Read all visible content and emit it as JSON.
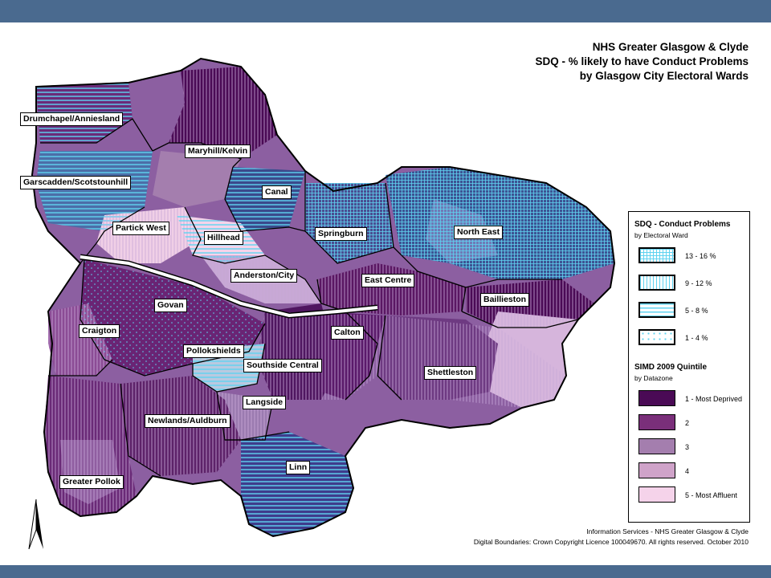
{
  "title": {
    "line1": "NHS Greater Glasgow & Clyde",
    "line2": "SDQ - % likely to have Conduct Problems",
    "line3": "by Glasgow City Electoral Wards"
  },
  "wards": [
    {
      "id": "drumchapel-anniesland",
      "label": "Drumchapel/Anniesland"
    },
    {
      "id": "maryhill-kelvin",
      "label": "Maryhill/Kelvin"
    },
    {
      "id": "garscadden-scotstounhill",
      "label": "Garscadden/Scotstounhill"
    },
    {
      "id": "canal",
      "label": "Canal"
    },
    {
      "id": "springburn",
      "label": "Springburn"
    },
    {
      "id": "north-east",
      "label": "North East"
    },
    {
      "id": "partick-west",
      "label": "Partick West"
    },
    {
      "id": "hillhead",
      "label": "Hillhead"
    },
    {
      "id": "anderston-city",
      "label": "Anderston/City"
    },
    {
      "id": "east-centre",
      "label": "East Centre"
    },
    {
      "id": "govan",
      "label": "Govan"
    },
    {
      "id": "baillieston",
      "label": "Baillieston"
    },
    {
      "id": "craigton",
      "label": "Craigton"
    },
    {
      "id": "calton",
      "label": "Calton"
    },
    {
      "id": "pollokshields",
      "label": "Pollokshields"
    },
    {
      "id": "southside-central",
      "label": "Southside Central"
    },
    {
      "id": "shettleston",
      "label": "Shettleston"
    },
    {
      "id": "langside",
      "label": "Langside"
    },
    {
      "id": "newlands-auldburn",
      "label": "Newlands/Auldburn"
    },
    {
      "id": "linn",
      "label": "Linn"
    },
    {
      "id": "greater-pollok",
      "label": "Greater Pollok"
    }
  ],
  "legend": {
    "sdq_title": "SDQ -  Conduct Problems",
    "sdq_sub": "by Electoral Ward",
    "sdq_classes": [
      {
        "label": "13 - 16 %",
        "pattern": "grid"
      },
      {
        "label": "9 - 12 %",
        "pattern": "vertical"
      },
      {
        "label": "5 - 8 %",
        "pattern": "horizontal"
      },
      {
        "label": "1 - 4 %",
        "pattern": "dots"
      }
    ],
    "simd_title": "SIMD 2009 Quintile",
    "simd_sub": "by Datazone",
    "simd_classes": [
      {
        "label": "1 - Most Deprived",
        "color": "#4a0a55"
      },
      {
        "label": "2",
        "color": "#7a2f7a"
      },
      {
        "label": "3",
        "color": "#a47eae"
      },
      {
        "label": "4",
        "color": "#cfa3c9"
      },
      {
        "label": "5 - Most Affluent",
        "color": "#f5d3ea"
      }
    ]
  },
  "footer": {
    "line1": "Information Services - NHS Greater Glasgow & Clyde",
    "line2": "Digital Boundaries: Crown Copyright Licence 100049670.  All rights reserved. October 2010"
  },
  "colors": {
    "pattern_line": "#5fd3f0",
    "frame": "#4a6a8f",
    "river": "#ffffff"
  },
  "icons": {
    "north_arrow": "north-arrow-icon"
  }
}
